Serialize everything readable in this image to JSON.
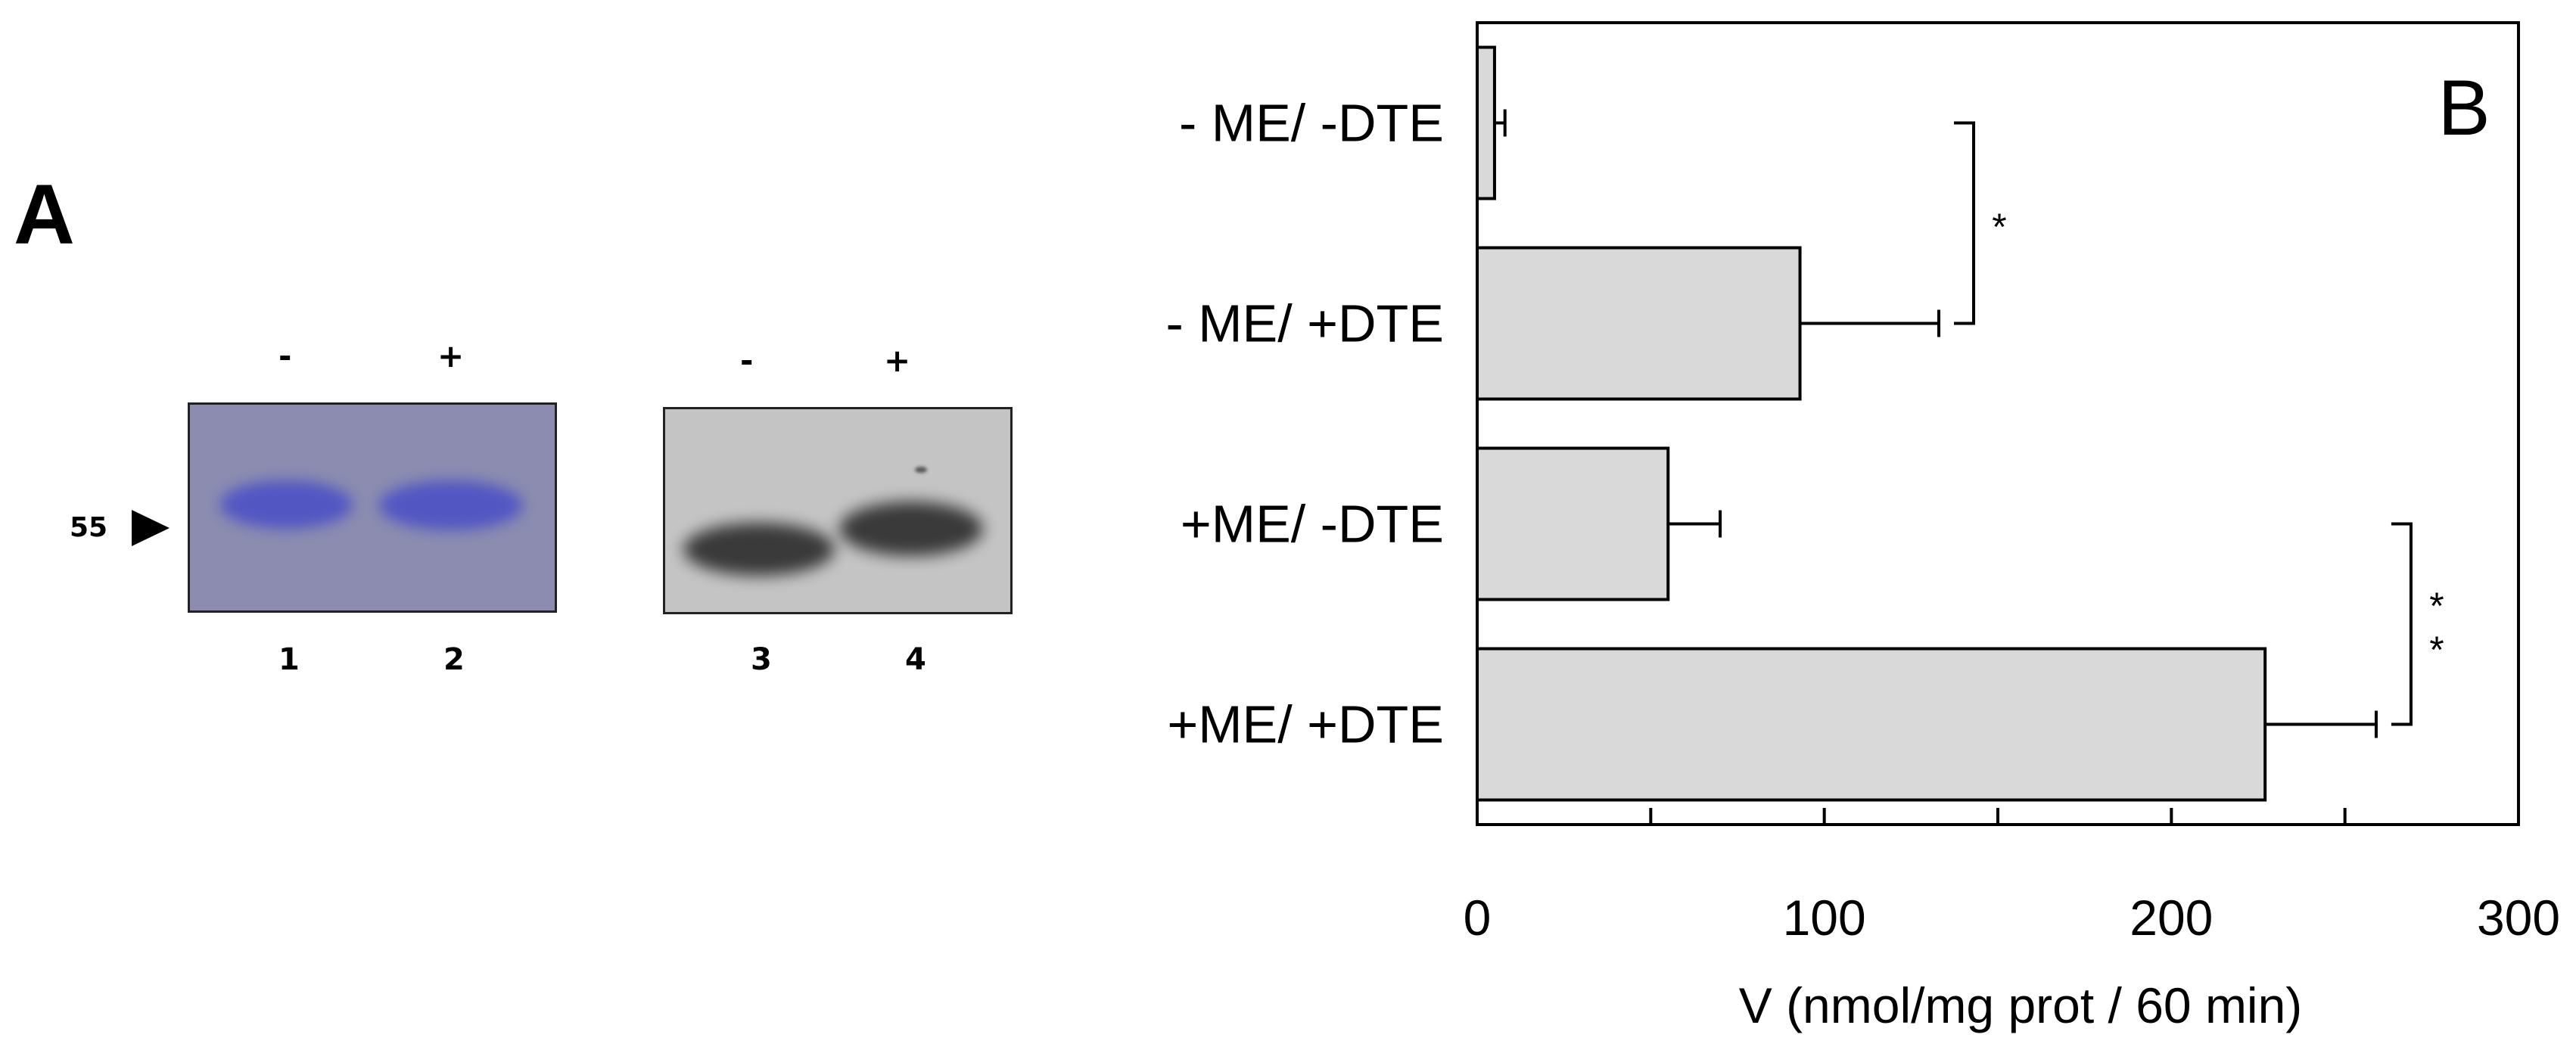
{
  "panel_a": {
    "letter": "A",
    "marker_label": "55",
    "gels": [
      {
        "signs": [
          "-",
          "+"
        ],
        "lanes": [
          "1",
          "2"
        ]
      },
      {
        "signs": [
          "-",
          "+"
        ],
        "lanes": [
          "3",
          "4"
        ]
      }
    ]
  },
  "chart_data": {
    "type": "bar",
    "orientation": "horizontal",
    "panel_letter": "B",
    "categories": [
      "- ME/ -DTE",
      "- ME/ +DTE",
      "+ME/ -DTE",
      "+ME/ +DTE"
    ],
    "values": [
      5,
      93,
      55,
      227
    ],
    "errors": [
      3,
      40,
      15,
      32
    ],
    "xlabel": "V (nmol/mg prot / 60 min)",
    "ylabel": "",
    "xlim": [
      0,
      300
    ],
    "xticks": [
      0,
      100,
      200,
      300
    ],
    "minor_xticks": [
      50,
      150,
      250
    ],
    "bar_color": "#d9d9d9",
    "grid": false,
    "significance": [
      {
        "between": [
          "- ME/ -DTE",
          "- ME/ +DTE"
        ],
        "label": "*"
      },
      {
        "between": [
          "+ME/ -DTE",
          "+ME/ +DTE"
        ],
        "label": "**"
      }
    ]
  }
}
